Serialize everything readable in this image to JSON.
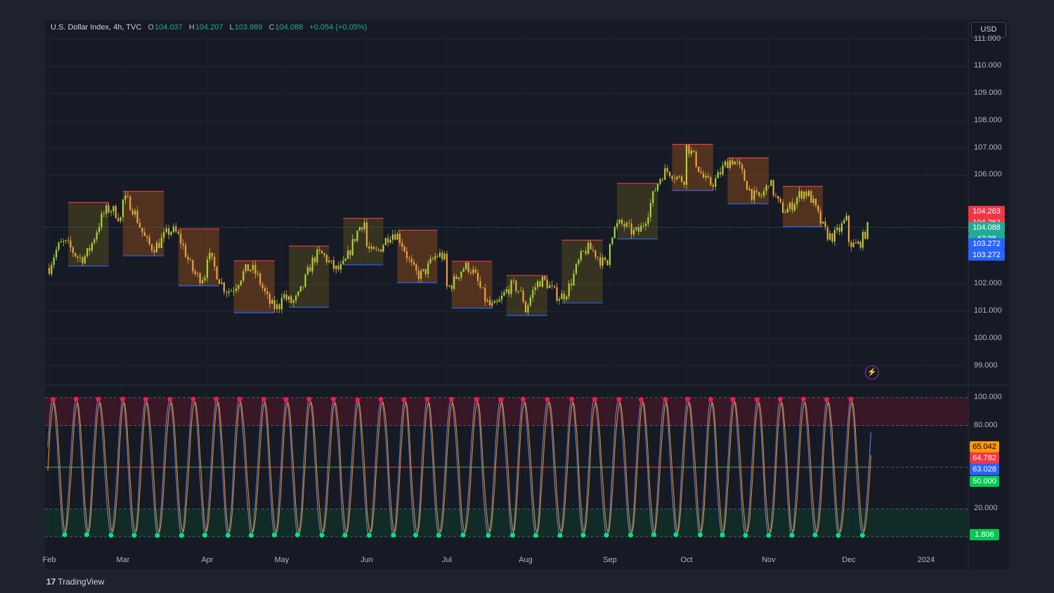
{
  "header": {
    "symbol": "U.S. Dollar Index, 4h, TVC",
    "open_label": "O",
    "open": "104.037",
    "high_label": "H",
    "high": "104.207",
    "low_label": "L",
    "low": "103.989",
    "close_label": "C",
    "close": "104.088",
    "change": "+0.054 (+0.05%)"
  },
  "currency": "USD",
  "price_axis": [
    "111.000",
    "110.000",
    "109.000",
    "108.000",
    "107.000",
    "106.000",
    "102.000",
    "101.000",
    "100.000",
    "99.000"
  ],
  "price_tags": [
    {
      "value": "104.263",
      "color": "#f23645"
    },
    {
      "value": "104.263",
      "color": "#f23645"
    },
    {
      "value": "104.088",
      "color": "#22ab94"
    },
    {
      "value": "47:38",
      "color": "#22ab94"
    },
    {
      "value": "103.272",
      "color": "#2962ff"
    },
    {
      "value": "103.272",
      "color": "#2962ff"
    }
  ],
  "osc_axis": [
    "100.000",
    "80.000",
    "20.000"
  ],
  "osc_tags": [
    {
      "value": "65.042",
      "color": "#ff9800"
    },
    {
      "value": "64.782",
      "color": "#f23645"
    },
    {
      "value": "63.028",
      "color": "#2962ff"
    },
    {
      "value": "50.000",
      "color": "#00c853"
    },
    {
      "value": "1.806",
      "color": "#00c853"
    }
  ],
  "time_axis": [
    "Feb",
    "Mar",
    "Apr",
    "May",
    "Jun",
    "Jul",
    "Aug",
    "Sep",
    "Oct",
    "Nov",
    "Dec",
    "2024"
  ],
  "branding": "TradingView",
  "icons": {
    "alert": "lightning-alert-icon",
    "logo": "tradingview-logo-icon"
  },
  "colors": {
    "up": "#26a69a",
    "down": "#ef5350",
    "demand": "#2962ff",
    "supply": "#f23645",
    "osc_k": "#5b7be0",
    "osc_d": "#ff9800",
    "overbought": "#ff1744",
    "oversold": "#00e676"
  },
  "chart_data": [
    {
      "type": "candlestick",
      "title": "U.S. Dollar Index, 4h, TVC",
      "x": [
        "Feb",
        "Mar",
        "Apr",
        "May",
        "Jun",
        "Jul",
        "Aug",
        "Sep",
        "Oct",
        "Nov",
        "Dec"
      ],
      "close": [
        102.6,
        104.6,
        102.6,
        101.6,
        103.8,
        102.4,
        101.2,
        103.3,
        106.5,
        105.6,
        103.9
      ],
      "last_close": 104.088,
      "supply_zone_top": 104.263,
      "demand_zone_bottom": 103.272,
      "ylim": [
        98.5,
        111.2
      ],
      "grid": true
    },
    {
      "type": "line",
      "title": "",
      "ylim": [
        0,
        100
      ],
      "levels": [
        100,
        80,
        50,
        20,
        0
      ],
      "series": [
        {
          "name": "",
          "last": 65.042,
          "color": "#ff9800"
        },
        {
          "name": "",
          "last": 63.028,
          "color": "#2962ff"
        },
        {
          "name": "",
          "last": 64.782,
          "color": "#f23645"
        },
        {
          "name": "",
          "last": 1.806,
          "color": "#00c853"
        }
      ]
    }
  ]
}
